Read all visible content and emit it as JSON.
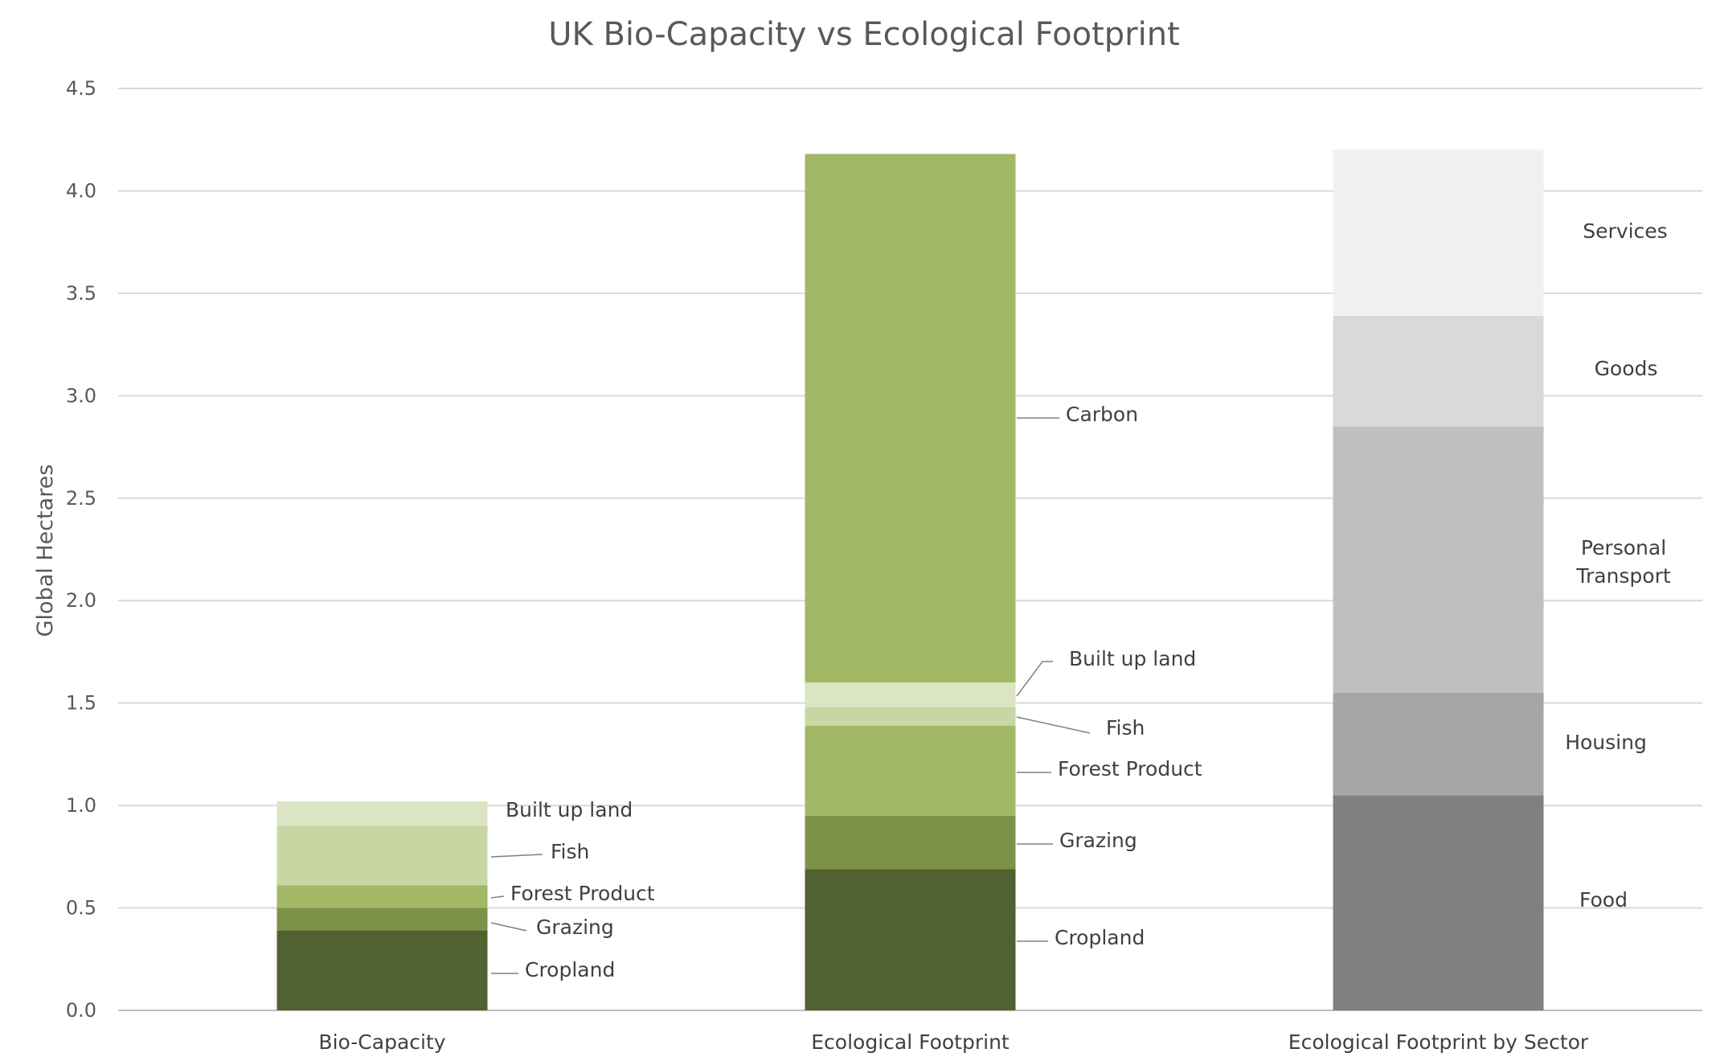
{
  "chart_data": {
    "type": "bar",
    "stacked": true,
    "title": "UK Bio-Capacity vs Ecological Footprint",
    "xlabel": "",
    "ylabel": "Global Hectares",
    "ylim": [
      0,
      4.5
    ],
    "yticks": [
      "0.0",
      "0.5",
      "1.0",
      "1.5",
      "2.0",
      "2.5",
      "3.0",
      "3.5",
      "4.0",
      "4.5"
    ],
    "grid": true,
    "legend": "none (data labels beside segments)",
    "categories": [
      "Bio-Capacity",
      "Ecological Footprint",
      "Ecological Footprint by Sector"
    ],
    "bars": [
      {
        "category": "Bio-Capacity",
        "segments": [
          {
            "label": "Cropland",
            "value": 0.39,
            "color": "#526130"
          },
          {
            "label": "Grazing",
            "value": 0.11,
            "color": "#7e9148"
          },
          {
            "label": "Forest Product",
            "value": 0.11,
            "color": "#a2b865"
          },
          {
            "label": "Fish",
            "value": 0.29,
            "color": "#c7d6a3"
          },
          {
            "label": "Built up land",
            "value": 0.12,
            "color": "#dbe5c4"
          }
        ]
      },
      {
        "category": "Ecological Footprint",
        "segments": [
          {
            "label": "Cropland",
            "value": 0.69,
            "color": "#526130"
          },
          {
            "label": "Grazing",
            "value": 0.26,
            "color": "#7e9148"
          },
          {
            "label": "Forest Product",
            "value": 0.44,
            "color": "#a2b865"
          },
          {
            "label": "Fish",
            "value": 0.09,
            "color": "#c7d6a3"
          },
          {
            "label": "Built up land",
            "value": 0.12,
            "color": "#dbe5c4"
          },
          {
            "label": "Carbon",
            "value": 2.58,
            "color": "#a2b865"
          }
        ]
      },
      {
        "category": "Ecological Footprint by Sector",
        "segments": [
          {
            "label": "Food",
            "value": 1.05,
            "color": "#808080"
          },
          {
            "label": "Housing",
            "value": 0.5,
            "color": "#a5a5a5"
          },
          {
            "label": "Personal Transport",
            "value": 1.3,
            "color": "#bfbfbf"
          },
          {
            "label": "Goods",
            "value": 0.54,
            "color": "#d9d9d9"
          },
          {
            "label": "Services",
            "value": 0.81,
            "color": "#f0f0f0"
          }
        ]
      }
    ]
  }
}
